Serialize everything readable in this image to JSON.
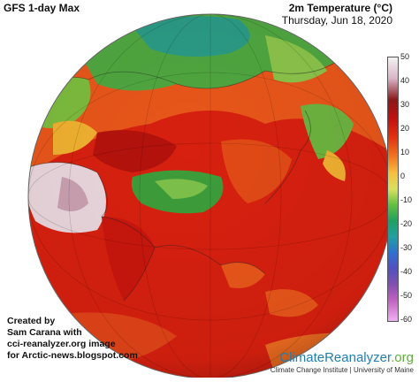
{
  "header": {
    "model_title": "GFS 1-day Max",
    "variable_title": "2m Temperature (°C)",
    "date": "Thursday, Jun 18, 2020"
  },
  "colorbar": {
    "ticks": [
      "50",
      "40",
      "30",
      "20",
      "10",
      "0",
      "-10",
      "-20",
      "-30",
      "-40",
      "-50",
      "-60"
    ]
  },
  "credit": {
    "line1": "Created by",
    "line2": "Sam Carana with",
    "line3": "cci-reanalyzer.org image",
    "line4": "for Arctic-news.blogspot.com"
  },
  "brand": {
    "name_main": "ClimateReanalyzer",
    "name_suffix": ".org",
    "sub": "Climate Change Institute | University of Maine"
  },
  "colors": {
    "hot": "#d01c10",
    "warm": "#e8561a",
    "mild": "#f0b030",
    "cool": "#4aa23a",
    "cold": "#2a9a8a",
    "extreme": "#e9d6dc"
  }
}
